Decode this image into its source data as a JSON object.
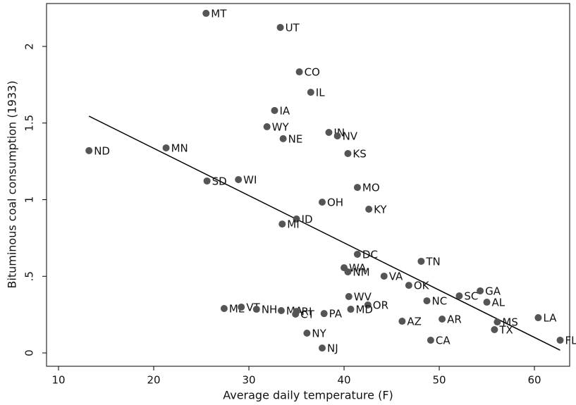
{
  "chart_data": {
    "type": "scatter",
    "x_label": "Average daily temperature (F)",
    "y_label": "Bituminous coal consumption (1933)",
    "point_labels": [
      "MT",
      "UT",
      "CO",
      "IL",
      "IA",
      "WY",
      "NE",
      "IN",
      "NV",
      "KS",
      "ND",
      "MN",
      "SD",
      "WI",
      "MO",
      "OH",
      "KY",
      "ID",
      "MI",
      "DC",
      "TN",
      "WA",
      "NM",
      "VA",
      "OK",
      "SC",
      "GA",
      "AL",
      "NC",
      "WV",
      "OR",
      "MD",
      "ME",
      "VT",
      "NH",
      "MA",
      "RI",
      "CT",
      "PA",
      "AZ",
      "AR",
      "CA",
      "MS",
      "TX",
      "LA",
      "FL",
      "NY",
      "NJ"
    ],
    "x": [
      25.5,
      33.3,
      35.3,
      36.5,
      32.7,
      31.9,
      33.6,
      38.4,
      39.3,
      40.4,
      13.2,
      21.3,
      25.6,
      28.9,
      41.4,
      37.7,
      42.6,
      35.0,
      33.5,
      41.4,
      48.1,
      40.0,
      40.4,
      44.2,
      46.8,
      52.1,
      54.3,
      55.0,
      48.7,
      40.5,
      42.5,
      40.7,
      27.4,
      29.2,
      30.8,
      33.4,
      35.0,
      34.9,
      37.9,
      46.1,
      50.3,
      49.1,
      56.1,
      55.8,
      60.4,
      62.7,
      36.1,
      37.7
    ],
    "values": [
      2.216,
      2.124,
      1.834,
      1.701,
      1.582,
      1.476,
      1.398,
      1.439,
      1.416,
      1.301,
      1.32,
      1.338,
      1.122,
      1.131,
      1.08,
      0.984,
      0.938,
      0.874,
      0.841,
      0.644,
      0.598,
      0.556,
      0.529,
      0.501,
      0.441,
      0.372,
      0.405,
      0.331,
      0.34,
      0.368,
      0.313,
      0.285,
      0.29,
      0.299,
      0.285,
      0.276,
      0.271,
      0.253,
      0.257,
      0.207,
      0.221,
      0.083,
      0.202,
      0.152,
      0.23,
      0.083,
      0.129,
      0.032
    ],
    "color": "#555555",
    "fit_line": {
      "x": [
        13.2,
        62.7
      ],
      "y": [
        1.545,
        0.018
      ],
      "color": "#000000"
    },
    "xlim": [
      8.74,
      63.7
    ],
    "ylim": [
      -0.087,
      2.28
    ],
    "xticks": [
      10,
      20,
      30,
      40,
      50,
      60
    ],
    "yticks": [
      0,
      {
        "value": 0.5,
        "label": ".5"
      },
      1,
      1.5,
      2
    ]
  }
}
